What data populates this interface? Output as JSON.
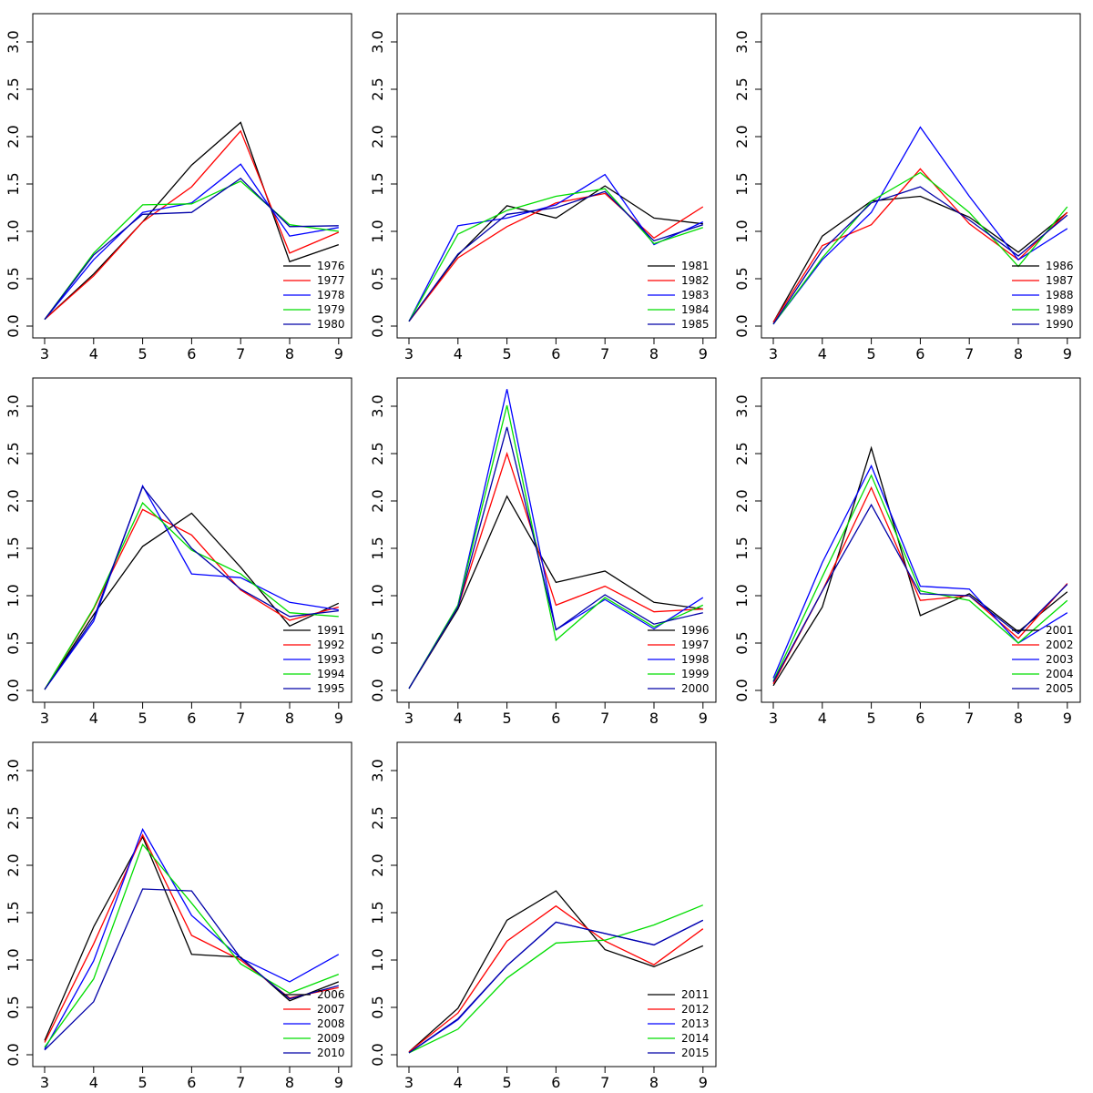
{
  "colors": {
    "black": "#000000",
    "red": "#ff0000",
    "blue": "#0000ff",
    "green": "#00dd00",
    "navy": "#0000a8"
  },
  "chart_data": [
    {
      "type": "line",
      "xlim": [
        3,
        9
      ],
      "ylim": [
        0,
        3.2
      ],
      "legend": "bottom-right",
      "x": [
        3,
        4,
        5,
        6,
        7,
        8,
        9
      ],
      "x_ticks": [
        "3",
        "4",
        "5",
        "6",
        "7",
        "8",
        "9"
      ],
      "y_ticks": [
        "0.0",
        "0.5",
        "1.0",
        "1.5",
        "2.0",
        "2.5",
        "3.0"
      ],
      "series": [
        {
          "name": "1976",
          "color": "#000000",
          "values": [
            0.07,
            0.55,
            1.1,
            1.7,
            2.15,
            0.68,
            0.86
          ]
        },
        {
          "name": "1977",
          "color": "#ff0000",
          "values": [
            0.07,
            0.53,
            1.1,
            1.47,
            2.06,
            0.77,
            0.99
          ]
        },
        {
          "name": "1978",
          "color": "#0000ff",
          "values": [
            0.07,
            0.7,
            1.2,
            1.3,
            1.71,
            0.95,
            1.04
          ]
        },
        {
          "name": "1979",
          "color": "#00dd00",
          "values": [
            0.07,
            0.77,
            1.28,
            1.29,
            1.53,
            1.07,
            1.0
          ]
        },
        {
          "name": "1980",
          "color": "#0000a8",
          "values": [
            0.07,
            0.75,
            1.18,
            1.2,
            1.56,
            1.05,
            1.06
          ]
        }
      ]
    },
    {
      "type": "line",
      "xlim": [
        3,
        9
      ],
      "ylim": [
        0,
        3.2
      ],
      "legend": "bottom-right",
      "x": [
        3,
        4,
        5,
        6,
        7,
        8,
        9
      ],
      "x_ticks": [
        "3",
        "4",
        "5",
        "6",
        "7",
        "8",
        "9"
      ],
      "y_ticks": [
        "0.0",
        "0.5",
        "1.0",
        "1.5",
        "2.0",
        "2.5",
        "3.0"
      ],
      "series": [
        {
          "name": "1981",
          "color": "#000000",
          "values": [
            0.05,
            0.75,
            1.27,
            1.14,
            1.48,
            1.14,
            1.08
          ]
        },
        {
          "name": "1982",
          "color": "#ff0000",
          "values": [
            0.05,
            0.72,
            1.05,
            1.3,
            1.4,
            0.93,
            1.26
          ]
        },
        {
          "name": "1983",
          "color": "#0000ff",
          "values": [
            0.05,
            1.06,
            1.14,
            1.28,
            1.6,
            0.86,
            1.1
          ]
        },
        {
          "name": "1984",
          "color": "#00dd00",
          "values": [
            0.05,
            0.97,
            1.22,
            1.37,
            1.45,
            0.87,
            1.04
          ]
        },
        {
          "name": "1985",
          "color": "#0000a8",
          "values": [
            0.05,
            0.76,
            1.18,
            1.25,
            1.42,
            0.9,
            1.07
          ]
        }
      ]
    },
    {
      "type": "line",
      "xlim": [
        3,
        9
      ],
      "ylim": [
        0,
        3.2
      ],
      "legend": "bottom-right",
      "x": [
        3,
        4,
        5,
        6,
        7,
        8,
        9
      ],
      "x_ticks": [
        "3",
        "4",
        "5",
        "6",
        "7",
        "8",
        "9"
      ],
      "y_ticks": [
        "0.0",
        "0.5",
        "1.0",
        "1.5",
        "2.0",
        "2.5",
        "3.0"
      ],
      "series": [
        {
          "name": "1986",
          "color": "#000000",
          "values": [
            0.04,
            0.95,
            1.32,
            1.37,
            1.15,
            0.78,
            1.2
          ]
        },
        {
          "name": "1987",
          "color": "#ff0000",
          "values": [
            0.04,
            0.85,
            1.07,
            1.66,
            1.08,
            0.7,
            1.2
          ]
        },
        {
          "name": "1988",
          "color": "#0000ff",
          "values": [
            0.02,
            0.7,
            1.2,
            2.1,
            1.37,
            0.7,
            1.03
          ]
        },
        {
          "name": "1989",
          "color": "#00dd00",
          "values": [
            0.02,
            0.72,
            1.32,
            1.62,
            1.2,
            0.63,
            1.26
          ]
        },
        {
          "name": "1990",
          "color": "#0000a8",
          "values": [
            0.02,
            0.8,
            1.3,
            1.47,
            1.12,
            0.74,
            1.17
          ]
        }
      ]
    },
    {
      "type": "line",
      "xlim": [
        3,
        9
      ],
      "ylim": [
        0,
        3.2
      ],
      "legend": "bottom-right",
      "x": [
        3,
        4,
        5,
        6,
        7,
        8,
        9
      ],
      "x_ticks": [
        "3",
        "4",
        "5",
        "6",
        "7",
        "8",
        "9"
      ],
      "y_ticks": [
        "0.0",
        "0.5",
        "1.0",
        "1.5",
        "2.0",
        "2.5",
        "3.0"
      ],
      "series": [
        {
          "name": "1991",
          "color": "#000000",
          "values": [
            0.01,
            0.8,
            1.52,
            1.87,
            1.3,
            0.68,
            0.92
          ]
        },
        {
          "name": "1992",
          "color": "#ff0000",
          "values": [
            0.01,
            0.86,
            1.91,
            1.64,
            1.06,
            0.74,
            0.88
          ]
        },
        {
          "name": "1993",
          "color": "#0000ff",
          "values": [
            0.01,
            0.73,
            2.16,
            1.23,
            1.19,
            0.93,
            0.85
          ]
        },
        {
          "name": "1994",
          "color": "#00dd00",
          "values": [
            0.01,
            0.87,
            1.98,
            1.48,
            1.23,
            0.82,
            0.78
          ]
        },
        {
          "name": "1995",
          "color": "#0000a8",
          "values": [
            0.01,
            0.76,
            2.15,
            1.5,
            1.07,
            0.78,
            0.84
          ]
        }
      ]
    },
    {
      "type": "line",
      "xlim": [
        3,
        9
      ],
      "ylim": [
        0,
        3.2
      ],
      "legend": "bottom-right",
      "x": [
        3,
        4,
        5,
        6,
        7,
        8,
        9
      ],
      "x_ticks": [
        "3",
        "4",
        "5",
        "6",
        "7",
        "8",
        "9"
      ],
      "y_ticks": [
        "0.0",
        "0.5",
        "1.0",
        "1.5",
        "2.0",
        "2.5",
        "3.0"
      ],
      "series": [
        {
          "name": "1996",
          "color": "#000000",
          "values": [
            0.02,
            0.86,
            2.05,
            1.14,
            1.26,
            0.93,
            0.86
          ]
        },
        {
          "name": "1997",
          "color": "#ff0000",
          "values": [
            0.02,
            0.88,
            2.5,
            0.9,
            1.1,
            0.83,
            0.86
          ]
        },
        {
          "name": "1998",
          "color": "#0000ff",
          "values": [
            0.02,
            0.9,
            3.18,
            0.64,
            0.96,
            0.65,
            0.98
          ]
        },
        {
          "name": "1999",
          "color": "#00dd00",
          "values": [
            0.02,
            0.9,
            3.01,
            0.53,
            0.98,
            0.67,
            0.9
          ]
        },
        {
          "name": "2000",
          "color": "#0000a8",
          "values": [
            0.02,
            0.88,
            2.78,
            0.64,
            1.01,
            0.7,
            0.82
          ]
        }
      ]
    },
    {
      "type": "line",
      "xlim": [
        3,
        9
      ],
      "ylim": [
        0,
        3.2
      ],
      "legend": "bottom-right",
      "x": [
        3,
        4,
        5,
        6,
        7,
        8,
        9
      ],
      "x_ticks": [
        "3",
        "4",
        "5",
        "6",
        "7",
        "8",
        "9"
      ],
      "y_ticks": [
        "0.0",
        "0.5",
        "1.0",
        "1.5",
        "2.0",
        "2.5",
        "3.0"
      ],
      "series": [
        {
          "name": "2001",
          "color": "#000000",
          "values": [
            0.05,
            0.88,
            2.56,
            0.79,
            1.02,
            0.62,
            1.04
          ]
        },
        {
          "name": "2002",
          "color": "#ff0000",
          "values": [
            0.07,
            1.05,
            2.14,
            0.95,
            1.0,
            0.55,
            1.13
          ]
        },
        {
          "name": "2003",
          "color": "#0000ff",
          "values": [
            0.13,
            1.35,
            2.37,
            1.1,
            1.07,
            0.5,
            0.82
          ]
        },
        {
          "name": "2004",
          "color": "#00dd00",
          "values": [
            0.1,
            1.2,
            2.27,
            1.05,
            0.95,
            0.5,
            0.95
          ]
        },
        {
          "name": "2005",
          "color": "#0000a8",
          "values": [
            0.09,
            1.05,
            1.96,
            1.02,
            1.0,
            0.6,
            1.12
          ]
        }
      ]
    },
    {
      "type": "line",
      "xlim": [
        3,
        9
      ],
      "ylim": [
        0,
        3.2
      ],
      "legend": "bottom-right",
      "x": [
        3,
        4,
        5,
        6,
        7,
        8,
        9
      ],
      "x_ticks": [
        "3",
        "4",
        "5",
        "6",
        "7",
        "8",
        "9"
      ],
      "y_ticks": [
        "0.0",
        "0.5",
        "1.0",
        "1.5",
        "2.0",
        "2.5",
        "3.0"
      ],
      "series": [
        {
          "name": "2006",
          "color": "#000000",
          "values": [
            0.15,
            1.35,
            2.3,
            1.06,
            1.03,
            0.57,
            0.77
          ]
        },
        {
          "name": "2007",
          "color": "#ff0000",
          "values": [
            0.13,
            1.17,
            2.32,
            1.26,
            1.0,
            0.6,
            0.71
          ]
        },
        {
          "name": "2008",
          "color": "#0000ff",
          "values": [
            0.06,
            0.99,
            2.38,
            1.47,
            1.02,
            0.77,
            1.06
          ]
        },
        {
          "name": "2009",
          "color": "#00dd00",
          "values": [
            0.08,
            0.8,
            2.22,
            1.6,
            0.96,
            0.65,
            0.85
          ]
        },
        {
          "name": "2010",
          "color": "#0000a8",
          "values": [
            0.05,
            0.56,
            1.75,
            1.73,
            1.02,
            0.59,
            0.73
          ]
        }
      ]
    },
    {
      "type": "line",
      "xlim": [
        3,
        9
      ],
      "ylim": [
        0,
        3.2
      ],
      "legend": "bottom-right",
      "x": [
        3,
        4,
        5,
        6,
        7,
        8,
        9
      ],
      "x_ticks": [
        "3",
        "4",
        "5",
        "6",
        "7",
        "8",
        "9"
      ],
      "y_ticks": [
        "0.0",
        "0.5",
        "1.0",
        "1.5",
        "2.0",
        "2.5",
        "3.0"
      ],
      "series": [
        {
          "name": "2011",
          "color": "#000000",
          "values": [
            0.03,
            0.49,
            1.42,
            1.73,
            1.11,
            0.93,
            1.15
          ]
        },
        {
          "name": "2012",
          "color": "#ff0000",
          "values": [
            0.03,
            0.44,
            1.2,
            1.57,
            1.2,
            0.95,
            1.33
          ]
        },
        {
          "name": "2013",
          "color": "#0000ff",
          "values": [
            0.02,
            0.37,
            0.94,
            1.4,
            1.28,
            1.16,
            1.42
          ]
        },
        {
          "name": "2014",
          "color": "#00dd00",
          "values": [
            0.02,
            0.27,
            0.81,
            1.18,
            1.21,
            1.37,
            1.58
          ]
        },
        {
          "name": "2015",
          "color": "#0000a8",
          "values": [
            0.02,
            0.38,
            0.94,
            1.4,
            1.28,
            1.16,
            1.42
          ]
        }
      ]
    }
  ]
}
